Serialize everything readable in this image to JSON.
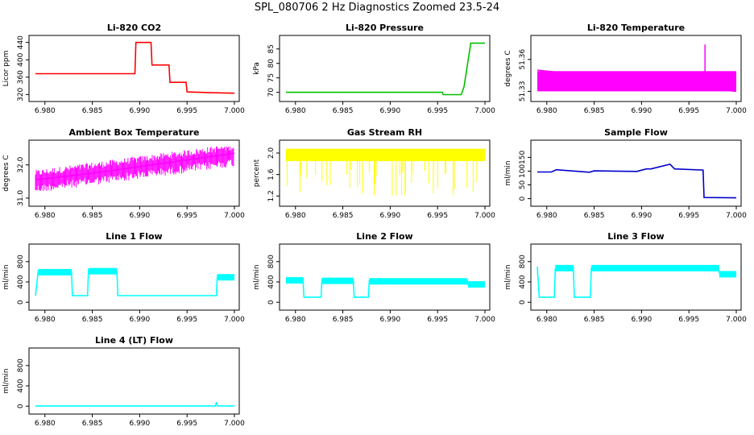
{
  "figure_title": "SPL_080706  2 Hz Diagnostics Zoomed 23.5-24",
  "chart_data": [
    {
      "type": "line",
      "title": "Li-820 CO2",
      "ylabel": "Licor ppm",
      "xlim": [
        6.979,
        7.0
      ],
      "xticks": [
        "6.980",
        "6.985",
        "6.990",
        "6.995",
        "7.000"
      ],
      "ylim": [
        315,
        445
      ],
      "yticks": [
        "320",
        "360",
        "400",
        "440"
      ],
      "color": "#ff0000",
      "series": [
        {
          "x": [
            6.979,
            6.9895,
            6.9896,
            6.9912,
            6.9913,
            6.9931,
            6.9932,
            6.9949,
            6.995,
            6.998,
            7.0
          ],
          "values": [
            368,
            368,
            440,
            440,
            388,
            388,
            348,
            348,
            326,
            324,
            323
          ]
        }
      ]
    },
    {
      "type": "line",
      "title": "Li-820 Pressure",
      "ylabel": "kPa",
      "xlim": [
        6.979,
        7.0
      ],
      "xticks": [
        "6.980",
        "6.985",
        "6.990",
        "6.995",
        "7.000"
      ],
      "ylim": [
        68.5,
        88
      ],
      "yticks": [
        "70",
        "75",
        "80",
        "85"
      ],
      "color": "#00c000",
      "series": [
        {
          "x": [
            6.979,
            6.9955,
            6.9956,
            6.9975,
            6.9978,
            6.9985,
            7.0
          ],
          "values": [
            70,
            70,
            69.2,
            69.2,
            72,
            87,
            87
          ]
        }
      ]
    },
    {
      "type": "line",
      "title": "Li-820 Temperature",
      "ylabel": "degrees C",
      "xlim": [
        6.979,
        7.0
      ],
      "xticks": [
        "6.980",
        "6.985",
        "6.990",
        "6.995",
        "7.000"
      ],
      "ylim": [
        51.325,
        51.378
      ],
      "yticks": [
        "51.33",
        "51.36"
      ],
      "color": "#ff00ff",
      "series": [
        {
          "x": [
            6.979,
            7.0
          ],
          "values": [
            51.35,
            51.33
          ]
        }
      ]
    },
    {
      "type": "line",
      "title": "Ambient Box Temperature",
      "ylabel": "degrees C",
      "xlim": [
        6.979,
        7.0
      ],
      "xticks": [
        "6.980",
        "6.985",
        "6.990",
        "6.995",
        "7.000"
      ],
      "ylim": [
        30.9,
        32.6
      ],
      "yticks": [
        "31.0",
        "32.0"
      ],
      "color": "#ff00ff",
      "series": [
        {
          "x": [
            6.979,
            6.985,
            6.99,
            6.995,
            7.0
          ],
          "values": [
            31.55,
            31.75,
            31.95,
            32.15,
            32.35
          ]
        }
      ]
    },
    {
      "type": "line",
      "title": "Gas Stream RH",
      "ylabel": "percent",
      "xlim": [
        6.979,
        7.0
      ],
      "xticks": [
        "6.980",
        "6.985",
        "6.990",
        "6.995",
        "7.000"
      ],
      "ylim": [
        1.1,
        2.15
      ],
      "yticks": [
        "1.2",
        "1.6",
        "2.0"
      ],
      "color": "#ffff00",
      "series": [
        {
          "x": [
            6.979,
            7.0
          ],
          "values": [
            1.95,
            1.95
          ]
        }
      ]
    },
    {
      "type": "line",
      "title": "Sample Flow",
      "ylabel": "ml/min",
      "xlim": [
        6.979,
        7.0
      ],
      "xticks": [
        "6.980",
        "6.985",
        "6.990",
        "6.995",
        "7.000"
      ],
      "ylim": [
        -10,
        195
      ],
      "yticks": [
        "0",
        "50",
        "100",
        "150"
      ],
      "color": "#0000cc",
      "series": [
        {
          "x": [
            6.979,
            6.9805,
            6.981,
            6.9845,
            6.985,
            6.9895,
            6.9905,
            6.991,
            6.993,
            6.9935,
            6.9965,
            6.9966,
            7.0
          ],
          "values": [
            97,
            97,
            105,
            96,
            101,
            99,
            108,
            108,
            125,
            108,
            104,
            4,
            3
          ]
        }
      ]
    },
    {
      "type": "line",
      "title": "Line 1 Flow",
      "ylabel": "ml/min",
      "xlim": [
        6.979,
        7.0
      ],
      "xticks": [
        "6.980",
        "6.985",
        "6.990",
        "6.995",
        "7.000"
      ],
      "ylim": [
        -60,
        1050
      ],
      "yticks": [
        "0",
        "400",
        "800"
      ],
      "color": "#00ffff",
      "series": [
        {
          "x": [
            6.979,
            6.9793,
            6.9828,
            6.9829,
            6.9845,
            6.9846,
            6.9876,
            6.9877,
            6.9981,
            6.9982,
            7.0
          ],
          "values": [
            130,
            620,
            620,
            130,
            130,
            640,
            600,
            130,
            130,
            520,
            520
          ]
        }
      ]
    },
    {
      "type": "line",
      "title": "Line 2 Flow",
      "ylabel": "ml/min",
      "xlim": [
        6.979,
        7.0
      ],
      "xticks": [
        "6.980",
        "6.985",
        "6.990",
        "6.995",
        "7.000"
      ],
      "ylim": [
        -60,
        1050
      ],
      "yticks": [
        "0",
        "400",
        "800"
      ],
      "color": "#00ffff",
      "series": [
        {
          "x": [
            6.979,
            6.9808,
            6.9809,
            6.9827,
            6.9828,
            6.9861,
            6.9862,
            6.9877,
            6.9878,
            6.9981,
            6.9982,
            7.0
          ],
          "values": [
            460,
            460,
            100,
            100,
            450,
            450,
            100,
            100,
            440,
            430,
            380,
            380
          ]
        }
      ]
    },
    {
      "type": "line",
      "title": "Line 3 Flow",
      "ylabel": "ml/min",
      "xlim": [
        6.979,
        7.0
      ],
      "xticks": [
        "6.980",
        "6.985",
        "6.990",
        "6.995",
        "7.000"
      ],
      "ylim": [
        -60,
        1050
      ],
      "yticks": [
        "0",
        "400",
        "800"
      ],
      "color": "#00ffff",
      "series": [
        {
          "x": [
            6.979,
            6.9792,
            6.9808,
            6.9809,
            6.9828,
            6.9829,
            6.9846,
            6.9847,
            6.9981,
            6.9982,
            7.0
          ],
          "values": [
            700,
            100,
            100,
            660,
            700,
            100,
            100,
            670,
            700,
            580,
            580
          ]
        }
      ]
    },
    {
      "type": "line",
      "title": "Line 4 (LT) Flow",
      "ylabel": "ml/min",
      "xlim": [
        6.979,
        7.0
      ],
      "xticks": [
        "6.980",
        "6.985",
        "6.990",
        "6.995",
        "7.000"
      ],
      "ylim": [
        -60,
        1050
      ],
      "yticks": [
        "0",
        "400",
        "800"
      ],
      "color": "#00ffff",
      "series": [
        {
          "x": [
            6.979,
            6.998,
            6.9981,
            6.9982,
            7.0
          ],
          "values": [
            5,
            5,
            80,
            5,
            5
          ]
        }
      ]
    }
  ]
}
